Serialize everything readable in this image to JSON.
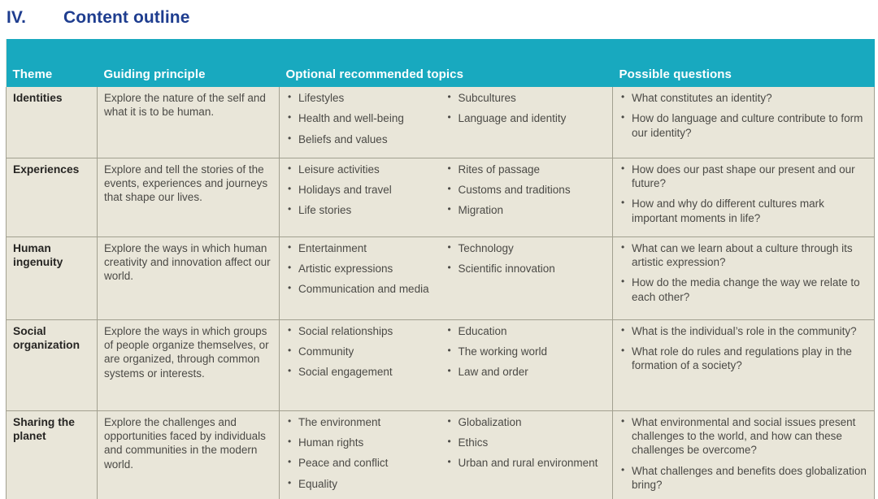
{
  "colors": {
    "header_bg": "#18a9bf",
    "heading_text": "#1e3d8f",
    "cell_bg": "#e9e6d9",
    "border": "#a2a090",
    "body_text": "#4b4a46"
  },
  "heading": {
    "number": "IV.",
    "title": "Content outline"
  },
  "table": {
    "columns": [
      "Theme",
      "Guiding principle",
      "Optional recommended topics",
      "Possible questions"
    ],
    "rows": [
      {
        "theme": "Identities",
        "principle": "Explore the nature of the self and what it is to be human.",
        "topics_col1": [
          "Lifestyles",
          "Health and well-being",
          "Beliefs and values"
        ],
        "topics_col2": [
          "Subcultures",
          "Language and identity"
        ],
        "questions": [
          "What constitutes an identity?",
          "How do language and culture contribute to form our identity?"
        ]
      },
      {
        "theme": "Experiences",
        "principle": "Explore and tell the stories of the events, experiences and journeys that shape our lives.",
        "topics_col1": [
          "Leisure activities",
          "Holidays and travel",
          "Life stories"
        ],
        "topics_col2": [
          "Rites of passage",
          "Customs and traditions",
          "Migration"
        ],
        "questions": [
          "How does our past shape our present and our future?",
          "How and why do different cultures mark important moments in life?"
        ]
      },
      {
        "theme": "Human ingenuity",
        "principle": "Explore the ways in which human creativity and innovation affect our world.",
        "topics_col1": [
          "Entertainment",
          "Artistic expressions",
          "Communication and media"
        ],
        "topics_col2": [
          "Technology",
          "Scientific innovation"
        ],
        "questions": [
          "What can we learn about a culture through its artistic expression?",
          "How do the media change the way we relate to each other?"
        ]
      },
      {
        "theme": "Social organization",
        "principle": "Explore the ways in which groups of people organize themselves, or are organized, through common systems or interests.",
        "topics_col1": [
          "Social relationships",
          "Community",
          "Social engagement"
        ],
        "topics_col2": [
          "Education",
          "The working world",
          "Law and order"
        ],
        "questions": [
          "What is the individual’s role in the community?",
          "What role do rules and regulations play in the formation of a society?"
        ]
      },
      {
        "theme": "Sharing the planet",
        "principle": "Explore the challenges and opportunities faced by individuals and communities in the modern world.",
        "topics_col1": [
          "The environment",
          "Human rights",
          "Peace and conflict",
          "Equality"
        ],
        "topics_col2": [
          "Globalization",
          "Ethics",
          "Urban and rural environment"
        ],
        "questions": [
          "What environmental and social issues present challenges to the world, and how can these challenges be overcome?",
          "What challenges and benefits does globalization bring?"
        ]
      }
    ]
  }
}
